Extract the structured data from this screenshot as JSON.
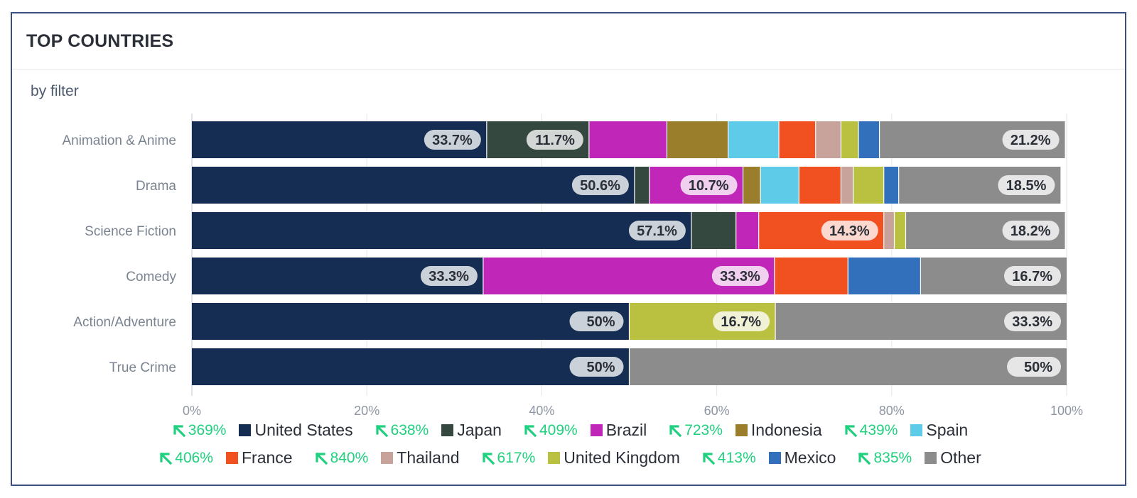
{
  "card": {
    "title": "TOP COUNTRIES",
    "subtitle": "by filter"
  },
  "chart_data": {
    "type": "bar",
    "orientation": "horizontal",
    "stacked": true,
    "normalized": true,
    "categories": [
      "Animation & Anime",
      "Drama",
      "Science Fiction",
      "Comedy",
      "Action/Adventure",
      "True Crime"
    ],
    "xlim": [
      0,
      100
    ],
    "xticks": [
      "0%",
      "20%",
      "40%",
      "60%",
      "80%",
      "100%"
    ],
    "grid": true,
    "legend_position": "bottom",
    "series": [
      {
        "name": "United States",
        "color": "#152d53",
        "values": [
          33.7,
          50.6,
          57.1,
          33.3,
          50,
          50
        ],
        "labels": [
          "33.7%",
          "50.6%",
          "57.1%",
          "33.3%",
          "50%",
          "50%"
        ]
      },
      {
        "name": "Japan",
        "color": "#34483f",
        "values": [
          11.7,
          1.7,
          5.1,
          0,
          0,
          0
        ],
        "labels": [
          "11.7%",
          "",
          "",
          "",
          "",
          ""
        ]
      },
      {
        "name": "Brazil",
        "color": "#c026b8",
        "values": [
          8.9,
          10.7,
          2.6,
          33.3,
          0,
          0
        ],
        "labels": [
          "",
          "10.7%",
          "",
          "33.3%",
          "",
          ""
        ]
      },
      {
        "name": "Indonesia",
        "color": "#9a7e2c",
        "values": [
          7.0,
          2.0,
          0,
          0,
          0,
          0
        ],
        "labels": [
          "",
          "",
          "",
          "",
          "",
          ""
        ]
      },
      {
        "name": "Spain",
        "color": "#5ecbe8",
        "values": [
          5.8,
          4.4,
          0,
          0,
          0,
          0
        ],
        "labels": [
          "",
          "",
          "",
          "",
          "",
          ""
        ]
      },
      {
        "name": "France",
        "color": "#f15021",
        "values": [
          4.2,
          4.8,
          14.3,
          8.4,
          0,
          0
        ],
        "labels": [
          "",
          "",
          "14.3%",
          "",
          "",
          ""
        ]
      },
      {
        "name": "Thailand",
        "color": "#c7a39b",
        "values": [
          2.9,
          1.4,
          1.2,
          0,
          0,
          0
        ],
        "labels": [
          "",
          "",
          "",
          "",
          "",
          ""
        ]
      },
      {
        "name": "United Kingdom",
        "color": "#bac040",
        "values": [
          2.0,
          3.5,
          1.3,
          0,
          16.7,
          0
        ],
        "labels": [
          "",
          "",
          "",
          "",
          "16.7%",
          ""
        ]
      },
      {
        "name": "Mexico",
        "color": "#3270bb",
        "values": [
          2.4,
          1.7,
          0,
          8.3,
          0,
          0
        ],
        "labels": [
          "",
          "",
          "",
          "",
          "",
          ""
        ]
      },
      {
        "name": "Other",
        "color": "#8c8c8c",
        "values": [
          21.2,
          18.5,
          18.2,
          16.7,
          33.3,
          50
        ],
        "labels": [
          "21.2%",
          "18.5%",
          "18.2%",
          "16.7%",
          "33.3%",
          "50%"
        ]
      }
    ]
  },
  "legend": {
    "trend_color": "#1fd07e",
    "trend_icon": "arrow-up-left-icon",
    "rows": [
      [
        {
          "series": 0,
          "name": "United States",
          "change": "369%"
        },
        {
          "series": 1,
          "name": "Japan",
          "change": "638%"
        },
        {
          "series": 2,
          "name": "Brazil",
          "change": "409%"
        },
        {
          "series": 3,
          "name": "Indonesia",
          "change": "723%"
        },
        {
          "series": 4,
          "name": "Spain",
          "change": "439%"
        }
      ],
      [
        {
          "series": 5,
          "name": "France",
          "change": "406%"
        },
        {
          "series": 6,
          "name": "Thailand",
          "change": "840%"
        },
        {
          "series": 7,
          "name": "United Kingdom",
          "change": "617%"
        },
        {
          "series": 8,
          "name": "Mexico",
          "change": "413%"
        },
        {
          "series": 9,
          "name": "Other",
          "change": "835%"
        }
      ]
    ]
  }
}
